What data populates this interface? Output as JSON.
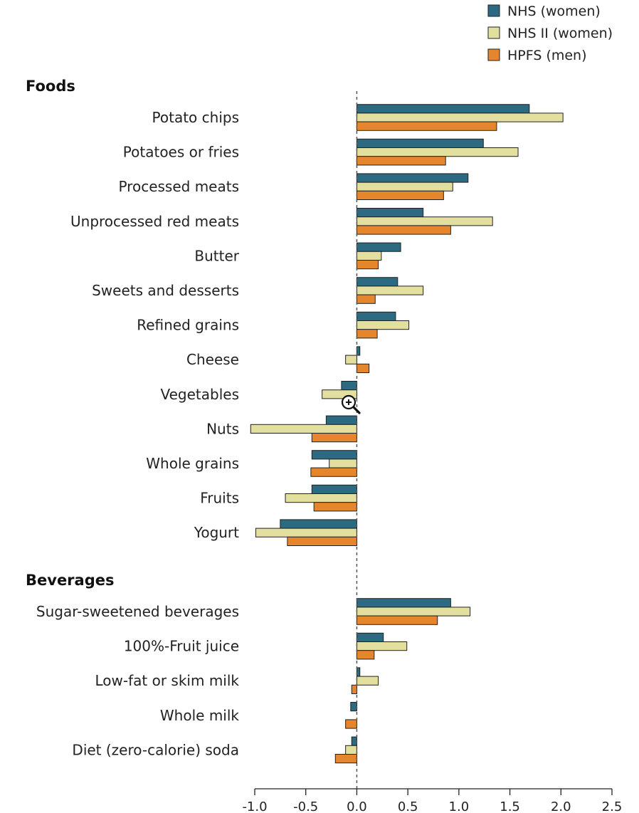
{
  "chart_data": {
    "type": "bar",
    "orientation": "horizontal",
    "groups": [
      {
        "label": "Foods",
        "categories": [
          "Potato chips",
          "Potatoes or fries",
          "Processed meats",
          "Unprocessed red meats",
          "Butter",
          "Sweets and desserts",
          "Refined grains",
          "Cheese",
          "Vegetables",
          "Nuts",
          "Whole grains",
          "Fruits",
          "Yogurt"
        ]
      },
      {
        "label": "Beverages",
        "categories": [
          "Sugar-sweetened beverages",
          "100%-Fruit juice",
          "Low-fat or skim milk",
          "Whole milk",
          "Diet (zero-calorie) soda"
        ]
      }
    ],
    "categories": [
      "Potato chips",
      "Potatoes or fries",
      "Processed meats",
      "Unprocessed red meats",
      "Butter",
      "Sweets and desserts",
      "Refined grains",
      "Cheese",
      "Vegetables",
      "Nuts",
      "Whole grains",
      "Fruits",
      "Yogurt",
      "Sugar-sweetened beverages",
      "100%-Fruit juice",
      "Low-fat or skim milk",
      "Whole milk",
      "Diet (zero-calorie) soda"
    ],
    "series": [
      {
        "name": "NHS (women)",
        "color": "#2b6a80",
        "values": [
          1.69,
          1.24,
          1.09,
          0.65,
          0.43,
          0.4,
          0.38,
          0.03,
          -0.15,
          -0.3,
          -0.44,
          -0.44,
          -0.75,
          0.92,
          0.26,
          0.03,
          -0.06,
          -0.05
        ]
      },
      {
        "name": "NHS II (women)",
        "color": "#e3df9e",
        "values": [
          2.02,
          1.58,
          0.94,
          1.33,
          0.24,
          0.65,
          0.51,
          -0.11,
          -0.34,
          -1.04,
          -0.27,
          -0.7,
          -0.99,
          1.11,
          0.49,
          0.21,
          0.0,
          -0.11
        ]
      },
      {
        "name": "HPFS (men)",
        "color": "#e5862c",
        "values": [
          1.37,
          0.87,
          0.85,
          0.92,
          0.21,
          0.18,
          0.2,
          0.12,
          0.0,
          -0.44,
          -0.45,
          -0.42,
          -0.68,
          0.79,
          0.17,
          -0.05,
          -0.11,
          -0.21
        ]
      }
    ],
    "xlim": [
      -1.0,
      2.5
    ],
    "xticks": [
      "-1.0",
      "-0.5",
      "0.0",
      "0.5",
      "1.0",
      "1.5",
      "2.0",
      "2.5"
    ],
    "xtick_values": [
      -1.0,
      -0.5,
      0.0,
      0.5,
      1.0,
      1.5,
      2.0,
      2.5
    ],
    "xlabel": "",
    "ylabel": "",
    "legend_position": "top-right",
    "zero_line": "dashed"
  }
}
